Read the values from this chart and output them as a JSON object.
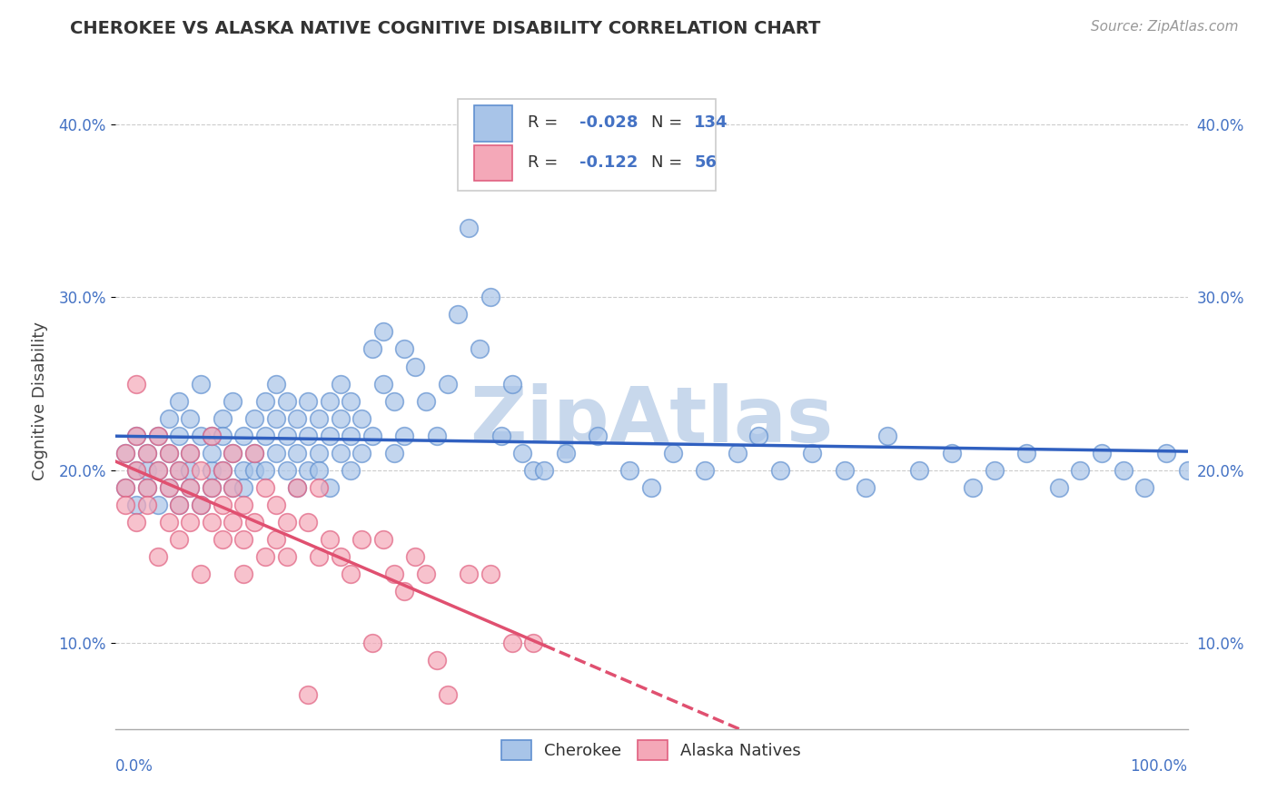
{
  "title": "CHEROKEE VS ALASKA NATIVE COGNITIVE DISABILITY CORRELATION CHART",
  "source": "Source: ZipAtlas.com",
  "ylabel": "Cognitive Disability",
  "cherokee_R": -0.028,
  "cherokee_N": 134,
  "alaska_R": -0.122,
  "alaska_N": 56,
  "cherokee_color": "#a8c4e8",
  "alaska_color": "#f4a8b8",
  "cherokee_edge": "#6090d0",
  "alaska_edge": "#e06080",
  "trend_cherokee_color": "#3060c0",
  "trend_alaska_color": "#e05070",
  "background_color": "#ffffff",
  "grid_color": "#cccccc",
  "watermark_color": "#c8d8ec",
  "xlim": [
    0,
    100
  ],
  "ylim": [
    5,
    43
  ],
  "yticks": [
    10,
    20,
    30,
    40
  ],
  "ytick_labels": [
    "10.0%",
    "20.0%",
    "30.0%",
    "40.0%"
  ],
  "cherokee_x": [
    1,
    1,
    2,
    2,
    2,
    3,
    3,
    3,
    4,
    4,
    4,
    5,
    5,
    5,
    6,
    6,
    6,
    6,
    7,
    7,
    7,
    7,
    8,
    8,
    8,
    9,
    9,
    9,
    9,
    10,
    10,
    10,
    11,
    11,
    11,
    12,
    12,
    12,
    13,
    13,
    13,
    14,
    14,
    14,
    15,
    15,
    15,
    16,
    16,
    16,
    17,
    17,
    17,
    18,
    18,
    18,
    19,
    19,
    19,
    20,
    20,
    20,
    21,
    21,
    21,
    22,
    22,
    22,
    23,
    23,
    24,
    24,
    25,
    25,
    26,
    26,
    27,
    27,
    28,
    29,
    30,
    31,
    32,
    33,
    34,
    35,
    36,
    37,
    38,
    39,
    40,
    42,
    45,
    48,
    50,
    52,
    55,
    58,
    60,
    62,
    65,
    68,
    70,
    72,
    75,
    78,
    80,
    82,
    85,
    88,
    90,
    92,
    94,
    96,
    98,
    100
  ],
  "cherokee_y": [
    19,
    21,
    20,
    18,
    22,
    19,
    21,
    20,
    20,
    22,
    18,
    21,
    19,
    23,
    20,
    22,
    18,
    24,
    21,
    19,
    23,
    20,
    22,
    18,
    25,
    20,
    22,
    19,
    21,
    23,
    20,
    22,
    19,
    21,
    24,
    20,
    22,
    19,
    23,
    21,
    20,
    22,
    24,
    20,
    21,
    23,
    25,
    20,
    22,
    24,
    21,
    23,
    19,
    22,
    20,
    24,
    21,
    23,
    20,
    22,
    24,
    19,
    23,
    21,
    25,
    22,
    24,
    20,
    21,
    23,
    27,
    22,
    25,
    28,
    21,
    24,
    27,
    22,
    26,
    24,
    22,
    25,
    29,
    34,
    27,
    30,
    22,
    25,
    21,
    20,
    20,
    21,
    22,
    20,
    19,
    21,
    20,
    21,
    22,
    20,
    21,
    20,
    19,
    22,
    20,
    21,
    19,
    20,
    21,
    19,
    20,
    21,
    20,
    19,
    21,
    20
  ],
  "alaska_x": [
    1,
    1,
    1,
    2,
    2,
    2,
    2,
    3,
    3,
    3,
    4,
    4,
    4,
    5,
    5,
    5,
    6,
    6,
    6,
    7,
    7,
    7,
    8,
    8,
    8,
    9,
    9,
    9,
    10,
    10,
    10,
    11,
    11,
    11,
    12,
    12,
    12,
    13,
    13,
    14,
    14,
    15,
    15,
    16,
    16,
    17,
    18,
    18,
    19,
    19,
    20,
    21,
    22,
    23,
    24,
    25
  ],
  "alaska_y": [
    19,
    21,
    18,
    20,
    22,
    17,
    25,
    19,
    21,
    18,
    20,
    22,
    15,
    19,
    17,
    21,
    18,
    20,
    16,
    19,
    17,
    21,
    18,
    20,
    14,
    19,
    17,
    22,
    18,
    20,
    16,
    19,
    17,
    21,
    14,
    18,
    16,
    17,
    21,
    15,
    19,
    18,
    16,
    17,
    15,
    19,
    7,
    17,
    15,
    19,
    16,
    15,
    14,
    16,
    10,
    16
  ],
  "alaska_x_extra": [
    26,
    27,
    28,
    29,
    30,
    31,
    33,
    35,
    37,
    39
  ],
  "alaska_y_extra": [
    14,
    13,
    15,
    14,
    9,
    7,
    14,
    14,
    10,
    10
  ]
}
